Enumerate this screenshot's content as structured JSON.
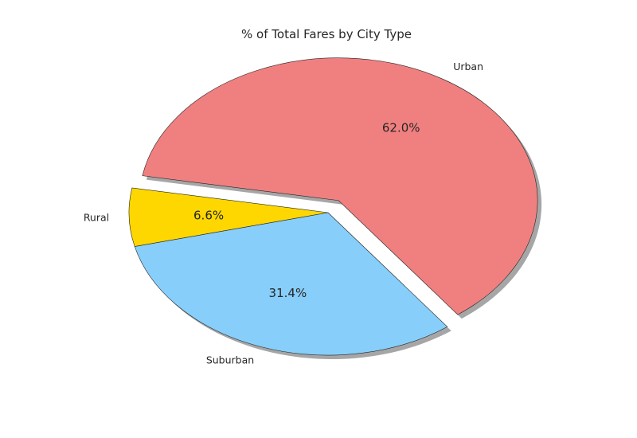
{
  "chart_data": {
    "type": "pie",
    "title": "% of Total Fares by City Type",
    "slices": [
      {
        "label": "Rural",
        "value": 6.6,
        "pct_label": "6.6%",
        "color": "#FFD700",
        "exploded": false
      },
      {
        "label": "Suburban",
        "value": 31.4,
        "pct_label": "31.4%",
        "color": "#87CEFA",
        "exploded": false
      },
      {
        "label": "Urban",
        "value": 62.0,
        "pct_label": "62.0%",
        "color": "#F08080",
        "exploded": true
      }
    ],
    "shadow": true,
    "legend": "none"
  }
}
